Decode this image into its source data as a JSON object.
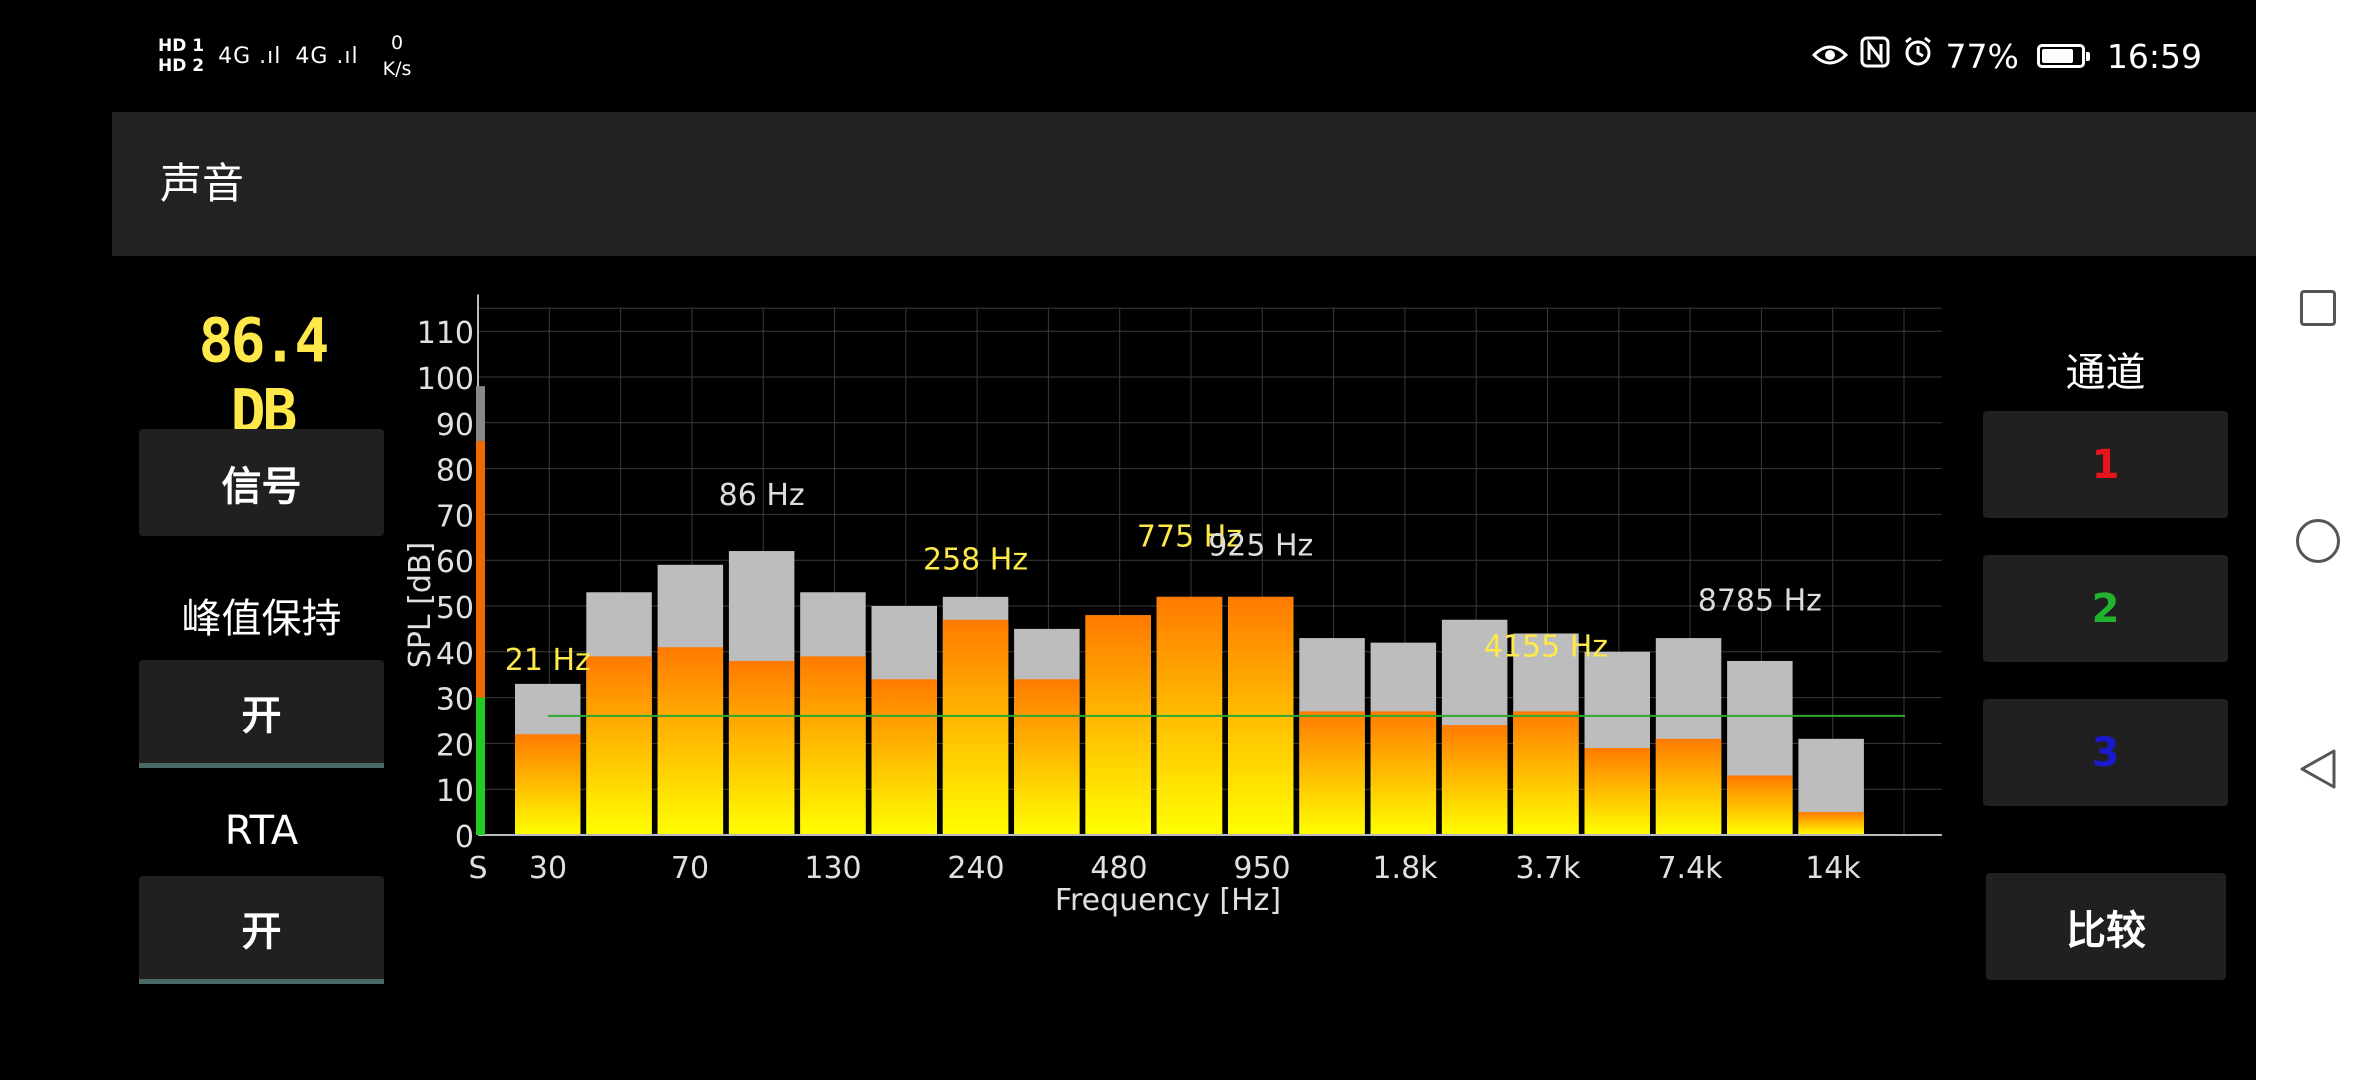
{
  "status_bar": {
    "sim1": "HD 1",
    "sim2": "HD 2",
    "signal1": "4G .ıl",
    "signal2": "4G .ıl",
    "speed_value": "0",
    "speed_unit": "K/s",
    "battery_percent": "77%",
    "time": "16:59",
    "icons": [
      "eye-icon",
      "nfc-icon",
      "alarm-icon",
      "battery-icon"
    ]
  },
  "app_bar": {
    "title": "声音"
  },
  "left_panel": {
    "spl_value": "86.4 DB",
    "signal_button": "信号",
    "peak_hold_label": "峰值保持",
    "peak_hold_button": "开",
    "rta_label": "RTA",
    "rta_button": "开"
  },
  "right_panel": {
    "channel_label": "通道",
    "channels": [
      "1",
      "2",
      "3"
    ],
    "compare_button": "比较"
  },
  "colors": {
    "spl_readout": "#ffe84a",
    "bar_orange": "#ff7a00",
    "bar_yellow": "#ffff00",
    "peak_grey": "#bdbdbd",
    "channel_1": "#e8141d",
    "channel_2": "#22b32c",
    "channel_3": "#1a1acc"
  },
  "chart_data": {
    "type": "bar",
    "xlabel": "Frequency [Hz]",
    "ylabel": "SPL [dB]",
    "ylim": [
      0,
      115
    ],
    "yticks": [
      0,
      10,
      20,
      30,
      40,
      50,
      60,
      70,
      80,
      90,
      100,
      110
    ],
    "xticks": [
      "S",
      "30",
      "70",
      "130",
      "240",
      "480",
      "950",
      "1.8k",
      "3.7k",
      "7.4k",
      "14k"
    ],
    "grid": true,
    "level_meter": {
      "green": 30,
      "orange": 86,
      "grey_peak": 98
    },
    "reference_line_db": 26,
    "series": [
      {
        "values": [
          22,
          39,
          41,
          38,
          39,
          34,
          47,
          34,
          48,
          52,
          52,
          27,
          27,
          24,
          27,
          19,
          21,
          13,
          5
        ]
      },
      {
        "values": [
          33,
          53,
          59,
          62,
          53,
          50,
          52,
          45,
          48,
          52,
          52,
          43,
          42,
          47,
          44,
          40,
          43,
          38,
          21
        ]
      }
    ],
    "annotations": [
      {
        "text": "21 Hz",
        "color": "#ffe84a",
        "bar": 0,
        "y": 36
      },
      {
        "text": "86 Hz",
        "color": "#dddddd",
        "bar": 3,
        "y": 72
      },
      {
        "text": "258 Hz",
        "color": "#ffe84a",
        "bar": 6,
        "y": 58
      },
      {
        "text": "775 Hz",
        "color": "#ffe84a",
        "bar": 9,
        "y": 63
      },
      {
        "text": "925 Hz",
        "color": "#dddddd",
        "bar": 10,
        "y": 61
      },
      {
        "text": "4155 Hz",
        "color": "#ffe84a",
        "bar": 14,
        "y": 39
      },
      {
        "text": "8785 Hz",
        "color": "#dddddd",
        "bar": 17,
        "y": 49
      }
    ]
  }
}
